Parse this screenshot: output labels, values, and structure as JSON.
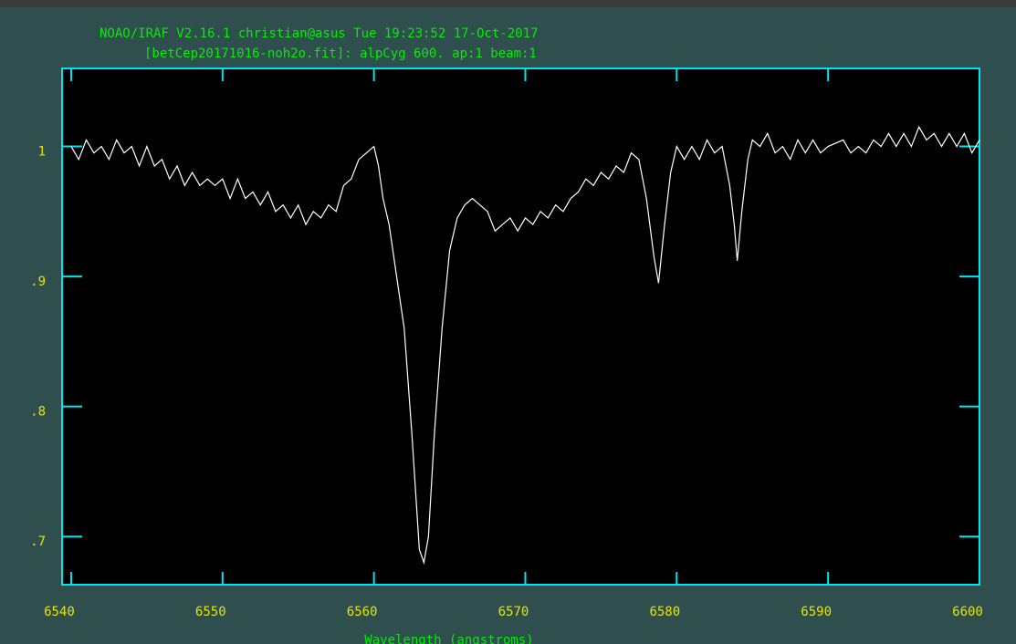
{
  "chart_data": {
    "type": "line",
    "title": "NOAO/IRAF V2.16.1 christian@asus Tue 19:23:52 17-Oct-2017",
    "subtitle": "[betCep20171016-noh2o.fit]: alpCyg 600. ap:1 beam:1",
    "x_label": "Wavelength (angstroms)",
    "color": "#ffffff",
    "x": [
      6540,
      6540.5,
      6541,
      6541.5,
      6542,
      6542.5,
      6543,
      6543.5,
      6544,
      6544.5,
      6545,
      6545.5,
      6546,
      6546.5,
      6547,
      6547.5,
      6548,
      6548.5,
      6549,
      6549.5,
      6550,
      6550.5,
      6551,
      6551.5,
      6552,
      6552.5,
      6553,
      6553.5,
      6554,
      6554.5,
      6555,
      6555.5,
      6556,
      6556.5,
      6557,
      6557.5,
      6558,
      6558.5,
      6559,
      6559.5,
      6560,
      6560.3,
      6560.6,
      6561,
      6561.5,
      6562,
      6562.5,
      6563,
      6563.3,
      6563.6,
      6564,
      6564.5,
      6565,
      6565.5,
      6566,
      6566.5,
      6567,
      6567.5,
      6568,
      6568.5,
      6569,
      6569.5,
      6570,
      6570.5,
      6571,
      6571.5,
      6572,
      6572.5,
      6573,
      6573.5,
      6574,
      6574.5,
      6575,
      6575.5,
      6576,
      6576.5,
      6577,
      6577.5,
      6578,
      6578.5,
      6578.8,
      6579.2,
      6579.6,
      6580,
      6580.5,
      6581,
      6581.5,
      6582,
      6582.5,
      6583,
      6583.5,
      6583.8,
      6584,
      6584.3,
      6584.7,
      6585,
      6585.5,
      6586,
      6586.5,
      6587,
      6587.5,
      6588,
      6588.5,
      6589,
      6589.5,
      6590,
      6591,
      6591.5,
      6592,
      6592.5,
      6593,
      6593.5,
      6594,
      6594.5,
      6595,
      6595.5,
      6596,
      6596.5,
      6597,
      6597.5,
      6598,
      6598.5,
      6599,
      6599.5,
      6600
    ],
    "values": [
      1.0,
      0.99,
      1.005,
      0.995,
      1.0,
      0.99,
      1.005,
      0.995,
      1.0,
      0.985,
      1.0,
      0.985,
      0.99,
      0.975,
      0.985,
      0.97,
      0.98,
      0.97,
      0.975,
      0.97,
      0.975,
      0.96,
      0.975,
      0.96,
      0.965,
      0.955,
      0.965,
      0.95,
      0.955,
      0.945,
      0.955,
      0.94,
      0.95,
      0.945,
      0.955,
      0.95,
      0.97,
      0.975,
      0.99,
      0.995,
      1.0,
      0.985,
      0.96,
      0.94,
      0.9,
      0.86,
      0.78,
      0.69,
      0.68,
      0.7,
      0.78,
      0.86,
      0.92,
      0.945,
      0.955,
      0.96,
      0.955,
      0.95,
      0.935,
      0.94,
      0.945,
      0.935,
      0.945,
      0.94,
      0.95,
      0.945,
      0.955,
      0.95,
      0.96,
      0.965,
      0.975,
      0.97,
      0.98,
      0.975,
      0.985,
      0.98,
      0.995,
      0.99,
      0.96,
      0.915,
      0.895,
      0.94,
      0.98,
      1.0,
      0.99,
      1.0,
      0.99,
      1.005,
      0.995,
      1.0,
      0.97,
      0.94,
      0.912,
      0.95,
      0.99,
      1.005,
      1.0,
      1.01,
      0.995,
      1.0,
      0.99,
      1.005,
      0.995,
      1.005,
      0.995,
      1.0,
      1.005,
      0.995,
      1.0,
      0.995,
      1.005,
      1.0,
      1.01,
      1.0,
      1.01,
      1.0,
      1.015,
      1.005,
      1.01,
      1.0,
      1.01,
      1.0,
      1.01,
      0.995,
      1.005
    ],
    "xlim": [
      6539.4,
      6600
    ],
    "ylim": [
      0.663,
      1.06
    ],
    "xticks": [
      6540,
      6550,
      6560,
      6570,
      6580,
      6590,
      6600
    ],
    "yticks": [
      {
        "value": 1,
        "label": "1"
      },
      {
        "value": 0.9,
        "label": ".9"
      },
      {
        "value": 0.8,
        "label": ".8"
      },
      {
        "value": 0.7,
        "label": ".7"
      }
    ]
  }
}
